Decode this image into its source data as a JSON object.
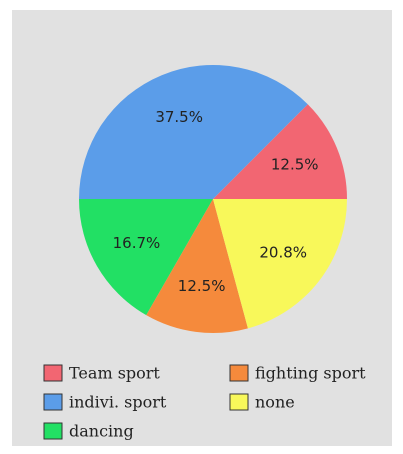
{
  "chart_data": {
    "type": "pie",
    "categories": [
      "Team sport",
      "indivi. sport",
      "dancing",
      "fighting sport",
      "none"
    ],
    "values": [
      12.5,
      37.5,
      16.7,
      12.5,
      20.8
    ],
    "value_labels": [
      "12.5%",
      "37.5%",
      "16.7%",
      "12.5%",
      "20.8%"
    ],
    "colors": [
      "#f26672",
      "#5b9de9",
      "#22e064",
      "#f58a3c",
      "#f8f85a"
    ]
  }
}
